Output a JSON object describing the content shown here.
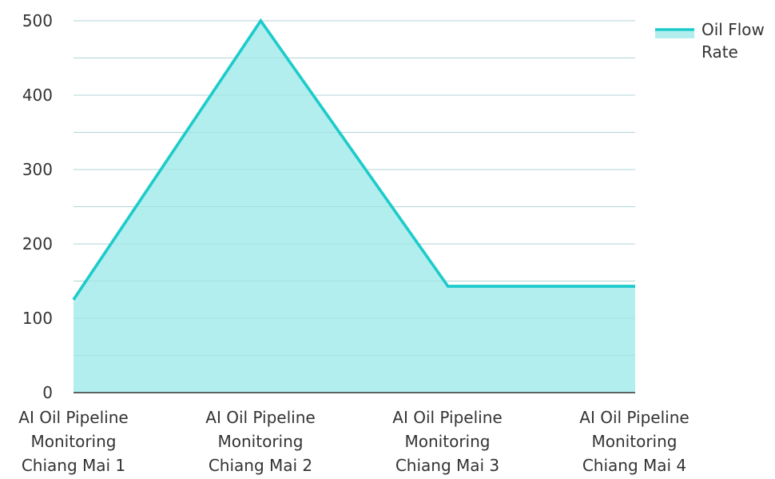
{
  "chart_data": {
    "type": "area",
    "categories": [
      [
        "AI Oil Pipeline",
        "Monitoring",
        "Chiang Mai 1"
      ],
      [
        "AI Oil Pipeline",
        "Monitoring",
        "Chiang Mai 2"
      ],
      [
        "AI Oil Pipeline",
        "Monitoring",
        "Chiang Mai 3"
      ],
      [
        "AI Oil Pipeline",
        "Monitoring",
        "Chiang Mai 4"
      ]
    ],
    "series": [
      {
        "name": "Oil Flow Rate",
        "legend_lines": [
          "Oil Flow",
          "Rate"
        ],
        "values": [
          125,
          500,
          143,
          143
        ]
      }
    ],
    "yticks": [
      0,
      100,
      200,
      300,
      400,
      500
    ],
    "ylim": [
      0,
      500
    ],
    "grid": true,
    "legend": "top-right"
  },
  "colors": {
    "line": "#1ecbcb",
    "fill": "#b2eeee",
    "grid": "#cccccc",
    "axis": "#333333",
    "text": "#333333"
  }
}
